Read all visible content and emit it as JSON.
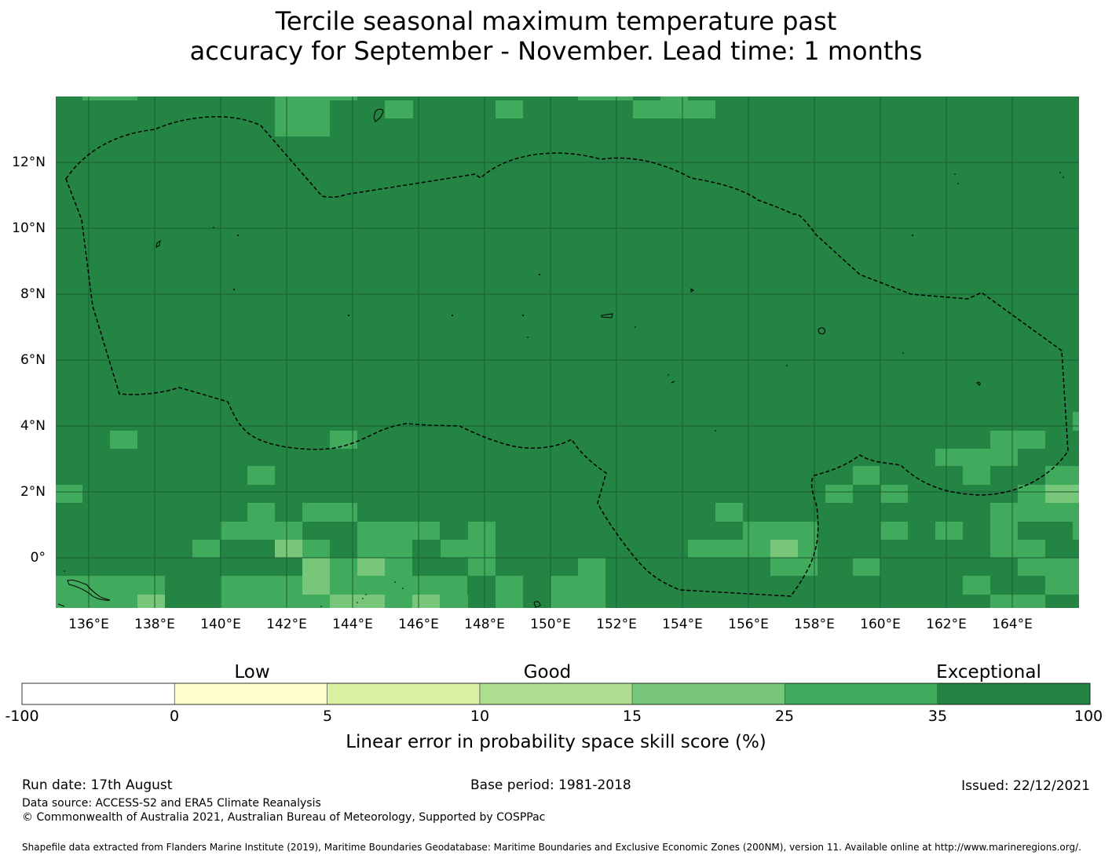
{
  "title": {
    "line1": "Tercile seasonal maximum temperature past",
    "line2": "accuracy for September - November. Lead time: 1 months"
  },
  "map": {
    "latitude_labels": [
      "12°N",
      "10°N",
      "8°N",
      "6°N",
      "4°N",
      "2°N",
      "0°"
    ],
    "longitude_labels": [
      "136°E",
      "138°E",
      "140°E",
      "142°E",
      "144°E",
      "146°E",
      "148°E",
      "150°E",
      "152°E",
      "154°E",
      "156°E",
      "158°E",
      "160°E",
      "162°E",
      "164°E"
    ],
    "extent": {
      "lon_min": 135,
      "lon_max": 166,
      "lat_min": -1.5,
      "lat_max": 14
    },
    "grid": "on",
    "boundary_style": "dashed black line (EEZ)",
    "colors": {
      "background": "#238443",
      "patch_25_35": "#41ab5d",
      "patch_15_25": "#78c679",
      "gridline": "#1a5e30"
    }
  },
  "legend": {
    "categories": {
      "low": "Low",
      "good": "Good",
      "exceptional": "Exceptional"
    },
    "ticks": [
      "-100",
      "0",
      "5",
      "10",
      "15",
      "25",
      "35",
      "100"
    ],
    "colors": [
      "#ffffff",
      "#ffffcc",
      "#d9f0a3",
      "#addd8e",
      "#78c679",
      "#41ab5d",
      "#238443"
    ],
    "label": "Linear error in probability space skill score (%)"
  },
  "footer": {
    "run_date": "Run date: 17th August",
    "base_period": "Base period: 1981-2018",
    "issued": "Issued: 22/12/2021",
    "data_source": "Data source: ACCESS-S2 and ERA5 Climate Reanalysis",
    "copyright": "© Commonwealth of Australia 2021, Australian Bureau of Meteorology, Supported by COSPPac",
    "shapefile_note": "Shapefile data extracted from Flanders Marine Institute (2019), Maritime Boundaries Geodatabase: Maritime Boundaries and Exclusive Economic Zones (200NM), version 11. Available online at http://www.marineregions.org/."
  }
}
